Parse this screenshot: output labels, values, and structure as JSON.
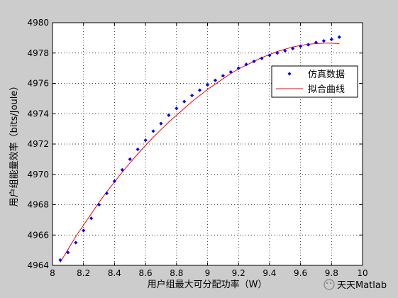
{
  "chart_data": {
    "type": "scatter",
    "title": "",
    "xlabel": "用户组最大可分配功率（W）",
    "ylabel": "用户组能量效率（bits/Joule）",
    "xlim": [
      8,
      10
    ],
    "ylim": [
      4964,
      4980
    ],
    "x_ticks": [
      8,
      8.2,
      8.4,
      8.6,
      8.8,
      9,
      9.2,
      9.4,
      9.6,
      9.8,
      10
    ],
    "x_tick_labels": [
      "8",
      "8.2",
      "8.4",
      "8.6",
      "8.8",
      "9",
      "9.2",
      "9.4",
      "9.6",
      "9.8",
      "10"
    ],
    "y_ticks": [
      4964,
      4966,
      4968,
      4970,
      4972,
      4974,
      4976,
      4978,
      4980
    ],
    "y_tick_labels": [
      "4964",
      "4966",
      "4968",
      "4970",
      "4972",
      "4974",
      "4976",
      "4978",
      "4980"
    ],
    "grid": true,
    "legend_position": "right, upper-middle",
    "series": [
      {
        "name": "仿真数据",
        "style": "markers",
        "color": "#0000ff",
        "x": [
          8.05,
          8.1,
          8.15,
          8.2,
          8.25,
          8.3,
          8.35,
          8.4,
          8.45,
          8.5,
          8.55,
          8.6,
          8.65,
          8.7,
          8.75,
          8.8,
          8.85,
          8.9,
          8.95,
          9.0,
          9.05,
          9.1,
          9.15,
          9.2,
          9.25,
          9.3,
          9.35,
          9.4,
          9.45,
          9.5,
          9.55,
          9.6,
          9.65,
          9.7,
          9.75,
          9.8,
          9.85
        ],
        "y": [
          4964.35,
          4964.85,
          4965.5,
          4966.3,
          4967.1,
          4968.0,
          4968.75,
          4969.55,
          4970.3,
          4971.0,
          4971.65,
          4972.25,
          4972.85,
          4973.35,
          4973.9,
          4974.35,
          4974.8,
          4975.2,
          4975.55,
          4975.9,
          4976.2,
          4976.5,
          4976.75,
          4977.0,
          4977.25,
          4977.45,
          4977.65,
          4977.85,
          4978.0,
          4978.15,
          4978.3,
          4978.45,
          4978.55,
          4978.7,
          4978.8,
          4978.9,
          4979.05
        ]
      },
      {
        "name": "拟合曲线",
        "style": "line",
        "color": "#ff0000",
        "x": [
          8.05,
          8.1,
          8.15,
          8.2,
          8.25,
          8.3,
          8.35,
          8.4,
          8.45,
          8.5,
          8.55,
          8.6,
          8.65,
          8.7,
          8.75,
          8.8,
          8.85,
          8.9,
          8.95,
          9.0,
          9.05,
          9.1,
          9.15,
          9.2,
          9.25,
          9.3,
          9.35,
          9.4,
          9.45,
          9.5,
          9.55,
          9.6,
          9.65,
          9.7,
          9.75,
          9.8,
          9.85
        ],
        "y": [
          4964.2,
          4965.05,
          4965.9,
          4966.65,
          4967.4,
          4968.15,
          4968.85,
          4969.5,
          4970.15,
          4970.75,
          4971.35,
          4971.9,
          4972.45,
          4972.95,
          4973.45,
          4973.9,
          4974.35,
          4974.8,
          4975.2,
          4975.6,
          4975.95,
          4976.3,
          4976.65,
          4976.95,
          4977.2,
          4977.45,
          4977.7,
          4977.9,
          4978.1,
          4978.25,
          4978.4,
          4978.5,
          4978.58,
          4978.62,
          4978.65,
          4978.65,
          4978.62
        ]
      }
    ]
  },
  "watermark": {
    "text": "天天Matlab"
  }
}
